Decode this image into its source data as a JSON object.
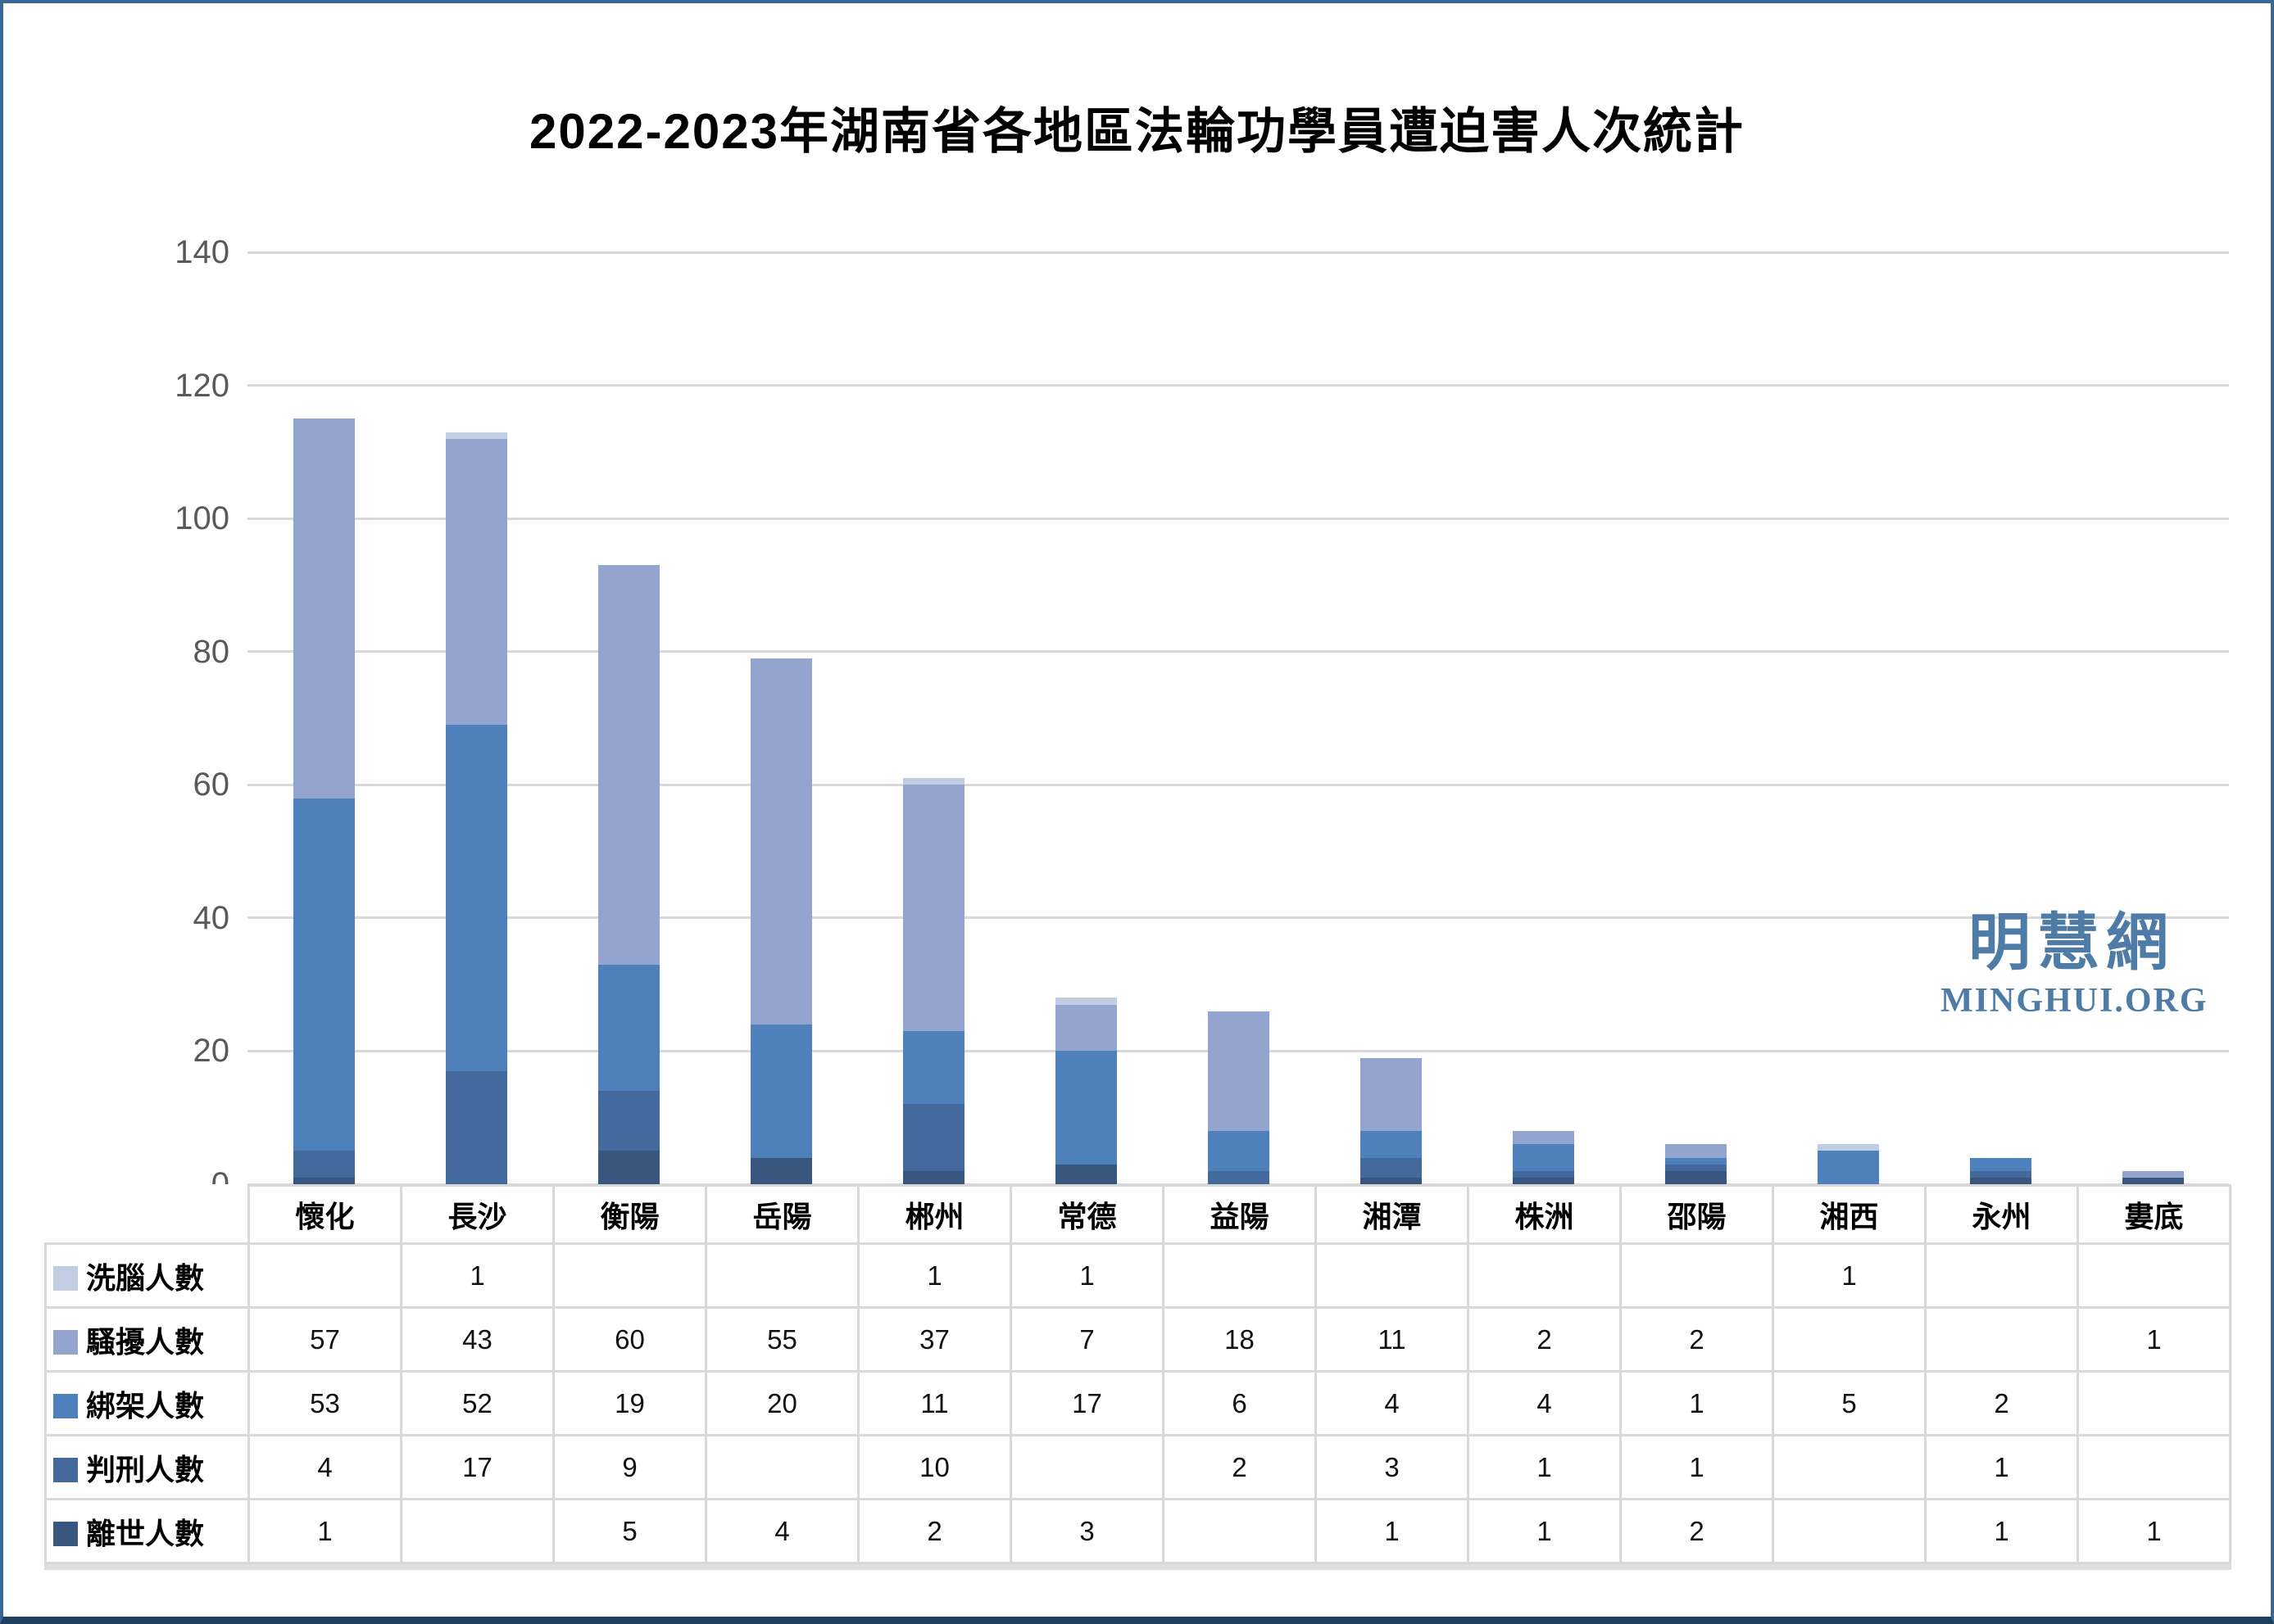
{
  "title": "2022-2023年湖南省各地區法輪功學員遭迫害人次統計",
  "watermark": {
    "site_name_cjk": "明慧網",
    "site_name_latin": "MINGHUI.ORG",
    "color": "#4E7CA6"
  },
  "style": {
    "frame_border_color": "#3A6795",
    "frame_bottom_color": "#1E3F5F",
    "gridline_color": "#D9D9D9",
    "axis_label_color": "#595959",
    "table_border_color": "#D9D9D9"
  },
  "chart_data": {
    "type": "bar",
    "stacked": true,
    "title": "2022-2023年湖南省各地區法輪功學員遭迫害人次統計",
    "categories": [
      "懷化",
      "長沙",
      "衡陽",
      "岳陽",
      "郴州",
      "常德",
      "益陽",
      "湘潭",
      "株洲",
      "邵陽",
      "湘西",
      "永州",
      "婁底"
    ],
    "series": [
      {
        "name": "洗腦人數",
        "color": "#C2CCE3",
        "values": [
          null,
          1,
          null,
          null,
          1,
          1,
          null,
          null,
          null,
          null,
          1,
          null,
          null
        ]
      },
      {
        "name": "騷擾人數",
        "color": "#93A5CE",
        "values": [
          57,
          43,
          60,
          55,
          37,
          7,
          18,
          11,
          2,
          2,
          null,
          null,
          1
        ]
      },
      {
        "name": "綁架人數",
        "color": "#4E80BC",
        "values": [
          53,
          52,
          19,
          20,
          11,
          17,
          6,
          4,
          4,
          1,
          5,
          2,
          null
        ]
      },
      {
        "name": "判刑人數",
        "color": "#44699D",
        "values": [
          4,
          17,
          9,
          null,
          10,
          null,
          2,
          3,
          1,
          1,
          null,
          1,
          null
        ]
      },
      {
        "name": "離世人數",
        "color": "#39567E",
        "values": [
          1,
          null,
          5,
          4,
          2,
          3,
          null,
          1,
          1,
          2,
          null,
          1,
          1
        ]
      }
    ],
    "stack_order_bottom_to_top": [
      "離世人數",
      "判刑人數",
      "綁架人數",
      "騷擾人數",
      "洗腦人數"
    ],
    "totals_by_category": [
      115,
      113,
      93,
      79,
      61,
      28,
      26,
      19,
      8,
      6,
      6,
      4,
      2
    ],
    "ylim": [
      0,
      140
    ],
    "yticks": [
      0,
      20,
      40,
      60,
      80,
      100,
      120,
      140
    ],
    "grid": "horizontal gridlines every 20 units",
    "legend_position": "table row headers below chart, with color swatches"
  }
}
